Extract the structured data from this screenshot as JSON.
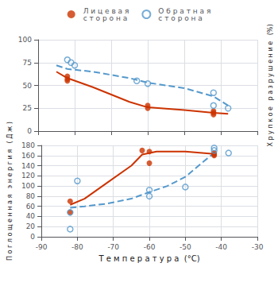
{
  "chart_data": [
    {
      "type": "line",
      "ylabel": "Х р у п к о е   р а з р у ш е н и е   (%)",
      "xlim": [
        -90,
        -30
      ],
      "xticks": [
        -90,
        -80,
        -70,
        -60,
        -50,
        -40,
        -30
      ],
      "ylim": [
        0,
        100
      ],
      "yticks": [
        0,
        25,
        50,
        75,
        100
      ],
      "grid": true,
      "legend": "top",
      "tick_labels": "y",
      "series": [
        {
          "name": "Л и ц е в а я\nс т о р о н а",
          "type": "scatter",
          "color": "#cc3300",
          "marker": "circle",
          "x": [
            -82,
            -82,
            -82,
            -60,
            -60,
            -42,
            -42,
            -42
          ],
          "values": [
            60,
            57,
            55,
            28,
            25,
            20,
            22,
            18
          ]
        },
        {
          "name": "О б р а т н а я\nс т о р о н а",
          "type": "scatter",
          "color": "#5599cc",
          "marker": "open circle",
          "x": [
            -82,
            -81,
            -80,
            -63,
            -60,
            -42,
            -42,
            -38
          ],
          "values": [
            78,
            75,
            72,
            55,
            52,
            42,
            28,
            25
          ]
        },
        {
          "name": "Л и ц е в а я\nс т о р о н а",
          "type": "line",
          "color": "#cc3300",
          "line_style": "solid",
          "x": [
            -85,
            -82,
            -75,
            -65,
            -60,
            -50,
            -42,
            -38
          ],
          "values": [
            65,
            58,
            48,
            32,
            26,
            23,
            20,
            19
          ]
        },
        {
          "name": "О б р а т н а я\nс т о р о н а",
          "type": "line",
          "color": "#5599cc",
          "line_style": "dashed",
          "x": [
            -85,
            -82,
            -75,
            -65,
            -60,
            -50,
            -42,
            -38
          ],
          "values": [
            72,
            68,
            65,
            58,
            53,
            47,
            38,
            28
          ]
        }
      ]
    },
    {
      "type": "line",
      "xlabel": "Т е м п е р а т у р а  (°C)",
      "ylabel": "П о г л о щ е н н а я   э н е р г и я   ( Д ж )",
      "xlim": [
        -90,
        -30
      ],
      "xticks": [
        -90,
        -80,
        -70,
        -60,
        -50,
        -40,
        -30
      ],
      "ylim": [
        0,
        180
      ],
      "yticks": [
        0,
        20,
        40,
        60,
        80,
        100,
        120,
        140,
        160,
        180
      ],
      "grid": true,
      "series": [
        {
          "name": "Л и ц е в а я\nс т о р о н а",
          "type": "scatter",
          "color": "#cc3300",
          "marker": "circle",
          "x": [
            -82,
            -82,
            -62,
            -60,
            -60,
            -42,
            -42,
            -42
          ],
          "values": [
            70,
            48,
            170,
            145,
            168,
            162,
            160,
            165
          ]
        },
        {
          "name": "О б р а т н а я\nс т о р о н а",
          "type": "scatter",
          "color": "#5599cc",
          "marker": "open circle",
          "x": [
            -82,
            -82,
            -80,
            -60,
            -60,
            -50,
            -42,
            -42,
            -38
          ],
          "values": [
            15,
            48,
            110,
            80,
            92,
            98,
            170,
            175,
            165
          ]
        },
        {
          "name": "Л и ц е в а я\nс т о р о н а",
          "type": "line",
          "color": "#cc3300",
          "line_style": "solid",
          "x": [
            -82,
            -78,
            -72,
            -65,
            -62,
            -58,
            -50,
            -42
          ],
          "values": [
            63,
            75,
            105,
            140,
            162,
            168,
            168,
            163
          ]
        },
        {
          "name": "О б р а т н а я\nс т о р о н а",
          "type": "line",
          "color": "#5599cc",
          "line_style": "dashed",
          "x": [
            -82,
            -78,
            -72,
            -65,
            -60,
            -55,
            -50,
            -45,
            -42
          ],
          "values": [
            57,
            60,
            65,
            75,
            88,
            100,
            118,
            148,
            165
          ]
        }
      ]
    }
  ]
}
